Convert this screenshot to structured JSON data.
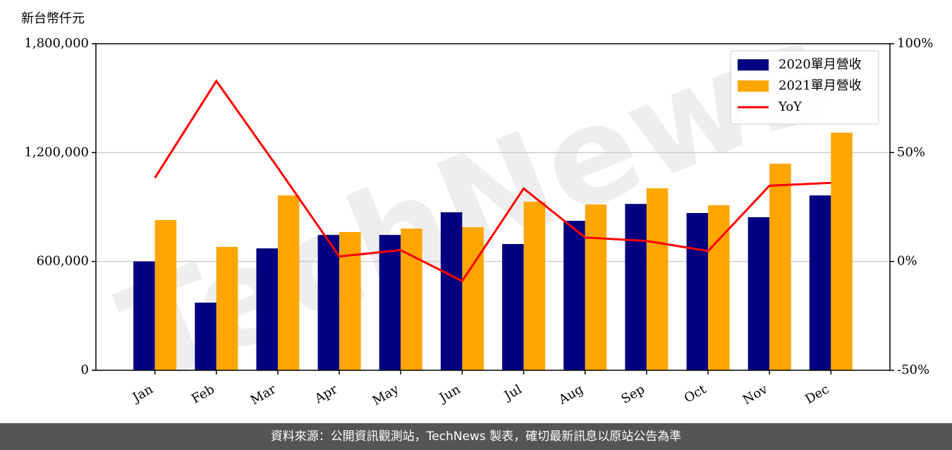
{
  "chart_data": {
    "type": "bar",
    "y_label": "新台幣仟元",
    "watermark": "TechNews",
    "footer": "資料來源：公開資訊觀測站，TechNews 製表，確切最新訊息以原站公告為準",
    "categories": [
      "Jan",
      "Feb",
      "Mar",
      "Apr",
      "May",
      "Jun",
      "Jul",
      "Aug",
      "Sep",
      "Oct",
      "Nov",
      "Dec"
    ],
    "series": [
      {
        "name": "2020單月營收",
        "color": "#000080",
        "values": [
          600000,
          373000,
          672000,
          746000,
          746000,
          871000,
          696000,
          824000,
          917000,
          867000,
          844000,
          964000
        ]
      },
      {
        "name": "2021單月營收",
        "color": "#ffa500",
        "values": [
          828000,
          680000,
          964000,
          762000,
          781000,
          789000,
          929000,
          914000,
          1003000,
          910000,
          1139000,
          1310000
        ]
      },
      {
        "name": "YoY",
        "color": "#ff0000",
        "axis": "y2",
        "type": "line",
        "values": [
          38.4,
          82.9,
          43.0,
          2.3,
          5.2,
          -9.0,
          33.5,
          11.0,
          9.4,
          4.8,
          34.8,
          36.1
        ]
      }
    ],
    "ylim": [
      0,
      1800000
    ],
    "yticks": [
      0,
      {
        "value": 600000,
        "label": "600,000"
      },
      {
        "value": 1200000,
        "label": "1,200,000"
      },
      {
        "value": 1800000,
        "label": "1,800,000"
      }
    ],
    "y2lim": [
      -50,
      100
    ],
    "y2ticks": [
      {
        "value": -50,
        "label": "-50%"
      },
      {
        "value": 0,
        "label": "0%"
      },
      {
        "value": 50,
        "label": "50%"
      },
      {
        "value": 100,
        "label": "100%"
      }
    ],
    "grid": true,
    "legend": "upper right"
  }
}
